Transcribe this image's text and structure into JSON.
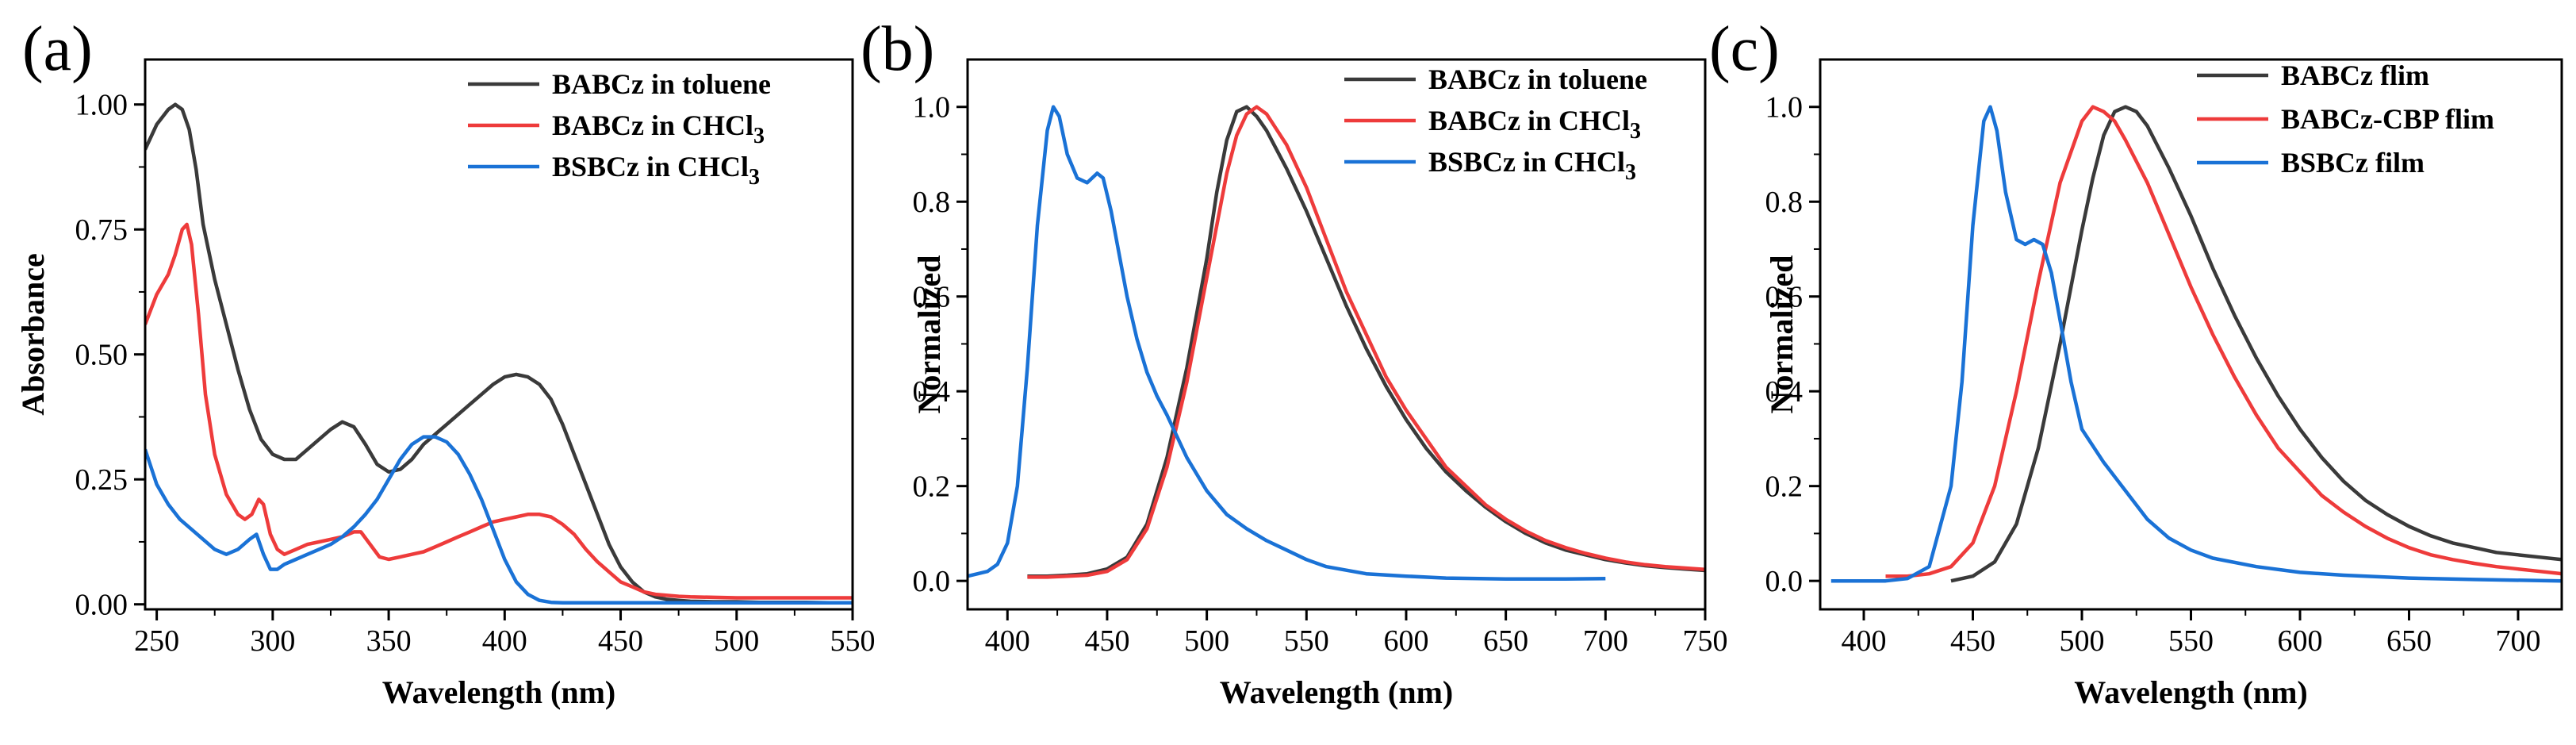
{
  "chart_data": [
    {
      "type": "line",
      "panel_label": "(a)",
      "xlabel": "Wavelength (nm)",
      "ylabel": "Absorbance",
      "xlim": [
        245,
        550
      ],
      "ylim": [
        -0.01,
        1.09
      ],
      "xticks": [
        250,
        300,
        350,
        400,
        450,
        500,
        550
      ],
      "yticks": [
        0.0,
        0.25,
        0.5,
        0.75,
        1.0
      ],
      "ytick_labels": [
        "0.00",
        "0.25",
        "0.50",
        "0.75",
        "1.00"
      ],
      "legend_position": "top-right",
      "series": [
        {
          "name": "BABCz in toluene",
          "color": "#3a3a3a",
          "x": [
            245,
            250,
            255,
            258,
            261,
            264,
            267,
            270,
            275,
            280,
            285,
            290,
            295,
            300,
            305,
            310,
            315,
            320,
            325,
            330,
            335,
            340,
            345,
            350,
            355,
            360,
            365,
            370,
            375,
            380,
            385,
            390,
            395,
            400,
            405,
            410,
            415,
            420,
            425,
            430,
            435,
            440,
            445,
            450,
            455,
            460,
            465,
            470,
            475,
            480,
            490,
            500,
            510,
            520,
            530,
            540,
            550
          ],
          "y": [
            0.91,
            0.96,
            0.99,
            1.0,
            0.99,
            0.95,
            0.87,
            0.76,
            0.65,
            0.56,
            0.47,
            0.39,
            0.33,
            0.3,
            0.29,
            0.29,
            0.31,
            0.33,
            0.35,
            0.365,
            0.355,
            0.32,
            0.28,
            0.265,
            0.27,
            0.29,
            0.32,
            0.34,
            0.36,
            0.38,
            0.4,
            0.42,
            0.44,
            0.455,
            0.46,
            0.455,
            0.44,
            0.41,
            0.36,
            0.3,
            0.24,
            0.18,
            0.12,
            0.075,
            0.045,
            0.025,
            0.015,
            0.01,
            0.008,
            0.006,
            0.005,
            0.005,
            0.004,
            0.004,
            0.004,
            0.003,
            0.003
          ]
        },
        {
          "name": "BABCz in CHCl3",
          "color": "#ee3b3b",
          "x": [
            245,
            250,
            255,
            258,
            261,
            263,
            265,
            268,
            271,
            275,
            280,
            285,
            288,
            291,
            294,
            296,
            299,
            302,
            305,
            310,
            315,
            320,
            325,
            330,
            335,
            338,
            342,
            346,
            350,
            355,
            360,
            365,
            370,
            375,
            380,
            385,
            390,
            395,
            400,
            405,
            410,
            415,
            420,
            425,
            430,
            435,
            440,
            445,
            450,
            455,
            460,
            465,
            470,
            475,
            480,
            490,
            500,
            520,
            550
          ],
          "y": [
            0.56,
            0.62,
            0.66,
            0.7,
            0.75,
            0.76,
            0.72,
            0.58,
            0.42,
            0.3,
            0.22,
            0.18,
            0.17,
            0.18,
            0.21,
            0.2,
            0.14,
            0.11,
            0.1,
            0.11,
            0.12,
            0.125,
            0.13,
            0.135,
            0.145,
            0.145,
            0.12,
            0.095,
            0.09,
            0.095,
            0.1,
            0.105,
            0.115,
            0.125,
            0.135,
            0.145,
            0.155,
            0.165,
            0.17,
            0.175,
            0.18,
            0.18,
            0.175,
            0.16,
            0.14,
            0.11,
            0.085,
            0.065,
            0.045,
            0.035,
            0.025,
            0.02,
            0.018,
            0.016,
            0.015,
            0.014,
            0.013,
            0.013,
            0.013
          ]
        },
        {
          "name": "BSBCz in CHCl3",
          "color": "#1a72d6",
          "x": [
            245,
            250,
            255,
            260,
            265,
            270,
            275,
            280,
            285,
            290,
            293,
            296,
            299,
            302,
            305,
            310,
            315,
            320,
            325,
            330,
            335,
            340,
            345,
            350,
            355,
            360,
            365,
            370,
            375,
            380,
            385,
            390,
            395,
            400,
            405,
            410,
            415,
            420,
            425,
            430,
            440,
            460,
            480,
            500,
            520,
            550
          ],
          "y": [
            0.31,
            0.24,
            0.2,
            0.17,
            0.15,
            0.13,
            0.11,
            0.1,
            0.11,
            0.13,
            0.14,
            0.1,
            0.07,
            0.07,
            0.08,
            0.09,
            0.1,
            0.11,
            0.12,
            0.135,
            0.155,
            0.18,
            0.21,
            0.25,
            0.29,
            0.32,
            0.335,
            0.335,
            0.325,
            0.3,
            0.26,
            0.21,
            0.15,
            0.09,
            0.045,
            0.02,
            0.008,
            0.004,
            0.003,
            0.003,
            0.003,
            0.003,
            0.003,
            0.003,
            0.003,
            0.003
          ]
        }
      ]
    },
    {
      "type": "line",
      "panel_label": "(b)",
      "xlabel": "Wavelength (nm)",
      "ylabel": "Normalized",
      "xlim": [
        380,
        750
      ],
      "ylim": [
        -0.06,
        1.1
      ],
      "xticks": [
        400,
        450,
        500,
        550,
        600,
        650,
        700,
        750
      ],
      "yticks": [
        0.0,
        0.2,
        0.4,
        0.6,
        0.8,
        1.0
      ],
      "ytick_labels": [
        "0.0",
        "0.2",
        "0.4",
        "0.6",
        "0.8",
        "1.0"
      ],
      "legend_position": "top-right",
      "series": [
        {
          "name": "BABCz in toluene",
          "color": "#3a3a3a",
          "x": [
            410,
            420,
            430,
            440,
            450,
            460,
            470,
            480,
            490,
            500,
            505,
            510,
            515,
            520,
            525,
            530,
            540,
            550,
            560,
            570,
            580,
            590,
            600,
            610,
            620,
            630,
            640,
            650,
            660,
            670,
            680,
            690,
            700,
            710,
            720,
            730,
            740,
            750
          ],
          "y": [
            0.01,
            0.01,
            0.012,
            0.015,
            0.025,
            0.05,
            0.12,
            0.26,
            0.45,
            0.68,
            0.82,
            0.93,
            0.99,
            1.0,
            0.98,
            0.95,
            0.87,
            0.78,
            0.68,
            0.58,
            0.49,
            0.41,
            0.34,
            0.28,
            0.23,
            0.19,
            0.155,
            0.125,
            0.1,
            0.08,
            0.065,
            0.055,
            0.045,
            0.038,
            0.032,
            0.028,
            0.025,
            0.022
          ]
        },
        {
          "name": "BABCz in CHCl3",
          "color": "#ee3b3b",
          "x": [
            410,
            420,
            430,
            440,
            450,
            460,
            470,
            480,
            490,
            500,
            510,
            515,
            520,
            525,
            530,
            540,
            550,
            560,
            570,
            580,
            590,
            600,
            610,
            620,
            630,
            640,
            650,
            660,
            670,
            680,
            690,
            700,
            710,
            720,
            730,
            740,
            750
          ],
          "y": [
            0.008,
            0.008,
            0.01,
            0.012,
            0.02,
            0.045,
            0.11,
            0.24,
            0.42,
            0.64,
            0.86,
            0.94,
            0.985,
            1.0,
            0.985,
            0.92,
            0.83,
            0.72,
            0.61,
            0.52,
            0.43,
            0.36,
            0.3,
            0.24,
            0.2,
            0.16,
            0.13,
            0.105,
            0.085,
            0.07,
            0.058,
            0.048,
            0.04,
            0.034,
            0.03,
            0.027,
            0.024
          ]
        },
        {
          "name": "BSBCz in CHCl3",
          "color": "#1a72d6",
          "x": [
            380,
            385,
            390,
            395,
            400,
            405,
            410,
            415,
            420,
            423,
            426,
            430,
            435,
            440,
            445,
            448,
            452,
            456,
            460,
            465,
            470,
            475,
            480,
            490,
            500,
            510,
            520,
            530,
            540,
            550,
            560,
            580,
            600,
            620,
            650,
            680,
            700
          ],
          "y": [
            0.01,
            0.015,
            0.02,
            0.035,
            0.08,
            0.2,
            0.45,
            0.75,
            0.95,
            1.0,
            0.98,
            0.9,
            0.85,
            0.84,
            0.86,
            0.85,
            0.78,
            0.69,
            0.6,
            0.51,
            0.44,
            0.39,
            0.35,
            0.26,
            0.19,
            0.14,
            0.11,
            0.085,
            0.065,
            0.045,
            0.03,
            0.015,
            0.01,
            0.006,
            0.004,
            0.004,
            0.005
          ]
        }
      ]
    },
    {
      "type": "line",
      "panel_label": "(c)",
      "xlabel": "Wavelength (nm)",
      "ylabel": "Normalized",
      "xlim": [
        380,
        720
      ],
      "ylim": [
        -0.06,
        1.1
      ],
      "xticks": [
        400,
        450,
        500,
        550,
        600,
        650,
        700
      ],
      "yticks": [
        0.0,
        0.2,
        0.4,
        0.6,
        0.8,
        1.0
      ],
      "ytick_labels": [
        "0.0",
        "0.2",
        "0.4",
        "0.6",
        "0.8",
        "1.0"
      ],
      "legend_position": "top-right",
      "series": [
        {
          "name": "BABCz flim",
          "color": "#3a3a3a",
          "x": [
            440,
            450,
            460,
            470,
            480,
            490,
            500,
            505,
            510,
            515,
            520,
            525,
            530,
            540,
            550,
            560,
            570,
            580,
            590,
            600,
            610,
            620,
            630,
            640,
            650,
            660,
            670,
            680,
            690,
            700,
            710,
            720
          ],
          "y": [
            0.0,
            0.01,
            0.04,
            0.12,
            0.28,
            0.5,
            0.74,
            0.85,
            0.94,
            0.99,
            1.0,
            0.99,
            0.96,
            0.87,
            0.77,
            0.66,
            0.56,
            0.47,
            0.39,
            0.32,
            0.26,
            0.21,
            0.17,
            0.14,
            0.115,
            0.095,
            0.08,
            0.07,
            0.06,
            0.055,
            0.05,
            0.045
          ]
        },
        {
          "name": "BABCz-CBP flim",
          "color": "#ee3b3b",
          "x": [
            410,
            420,
            430,
            440,
            450,
            460,
            470,
            480,
            490,
            500,
            505,
            510,
            515,
            520,
            530,
            540,
            550,
            560,
            570,
            580,
            590,
            600,
            610,
            620,
            630,
            640,
            650,
            660,
            670,
            680,
            690,
            700,
            710,
            720
          ],
          "y": [
            0.01,
            0.01,
            0.015,
            0.03,
            0.08,
            0.2,
            0.4,
            0.63,
            0.84,
            0.97,
            1.0,
            0.99,
            0.97,
            0.93,
            0.84,
            0.73,
            0.62,
            0.52,
            0.43,
            0.35,
            0.28,
            0.23,
            0.18,
            0.145,
            0.115,
            0.09,
            0.07,
            0.055,
            0.045,
            0.037,
            0.03,
            0.025,
            0.02,
            0.015
          ]
        },
        {
          "name": "BSBCz film",
          "color": "#1a72d6",
          "x": [
            385,
            400,
            410,
            420,
            430,
            440,
            445,
            450,
            455,
            458,
            461,
            465,
            470,
            474,
            478,
            482,
            486,
            490,
            495,
            500,
            510,
            520,
            530,
            540,
            550,
            560,
            580,
            600,
            620,
            650,
            680,
            720
          ],
          "y": [
            0.0,
            0.0,
            0.0,
            0.005,
            0.03,
            0.2,
            0.42,
            0.75,
            0.97,
            1.0,
            0.95,
            0.82,
            0.72,
            0.71,
            0.72,
            0.71,
            0.65,
            0.55,
            0.42,
            0.32,
            0.25,
            0.19,
            0.13,
            0.09,
            0.065,
            0.048,
            0.03,
            0.018,
            0.012,
            0.006,
            0.003,
            0.0
          ]
        }
      ]
    }
  ]
}
